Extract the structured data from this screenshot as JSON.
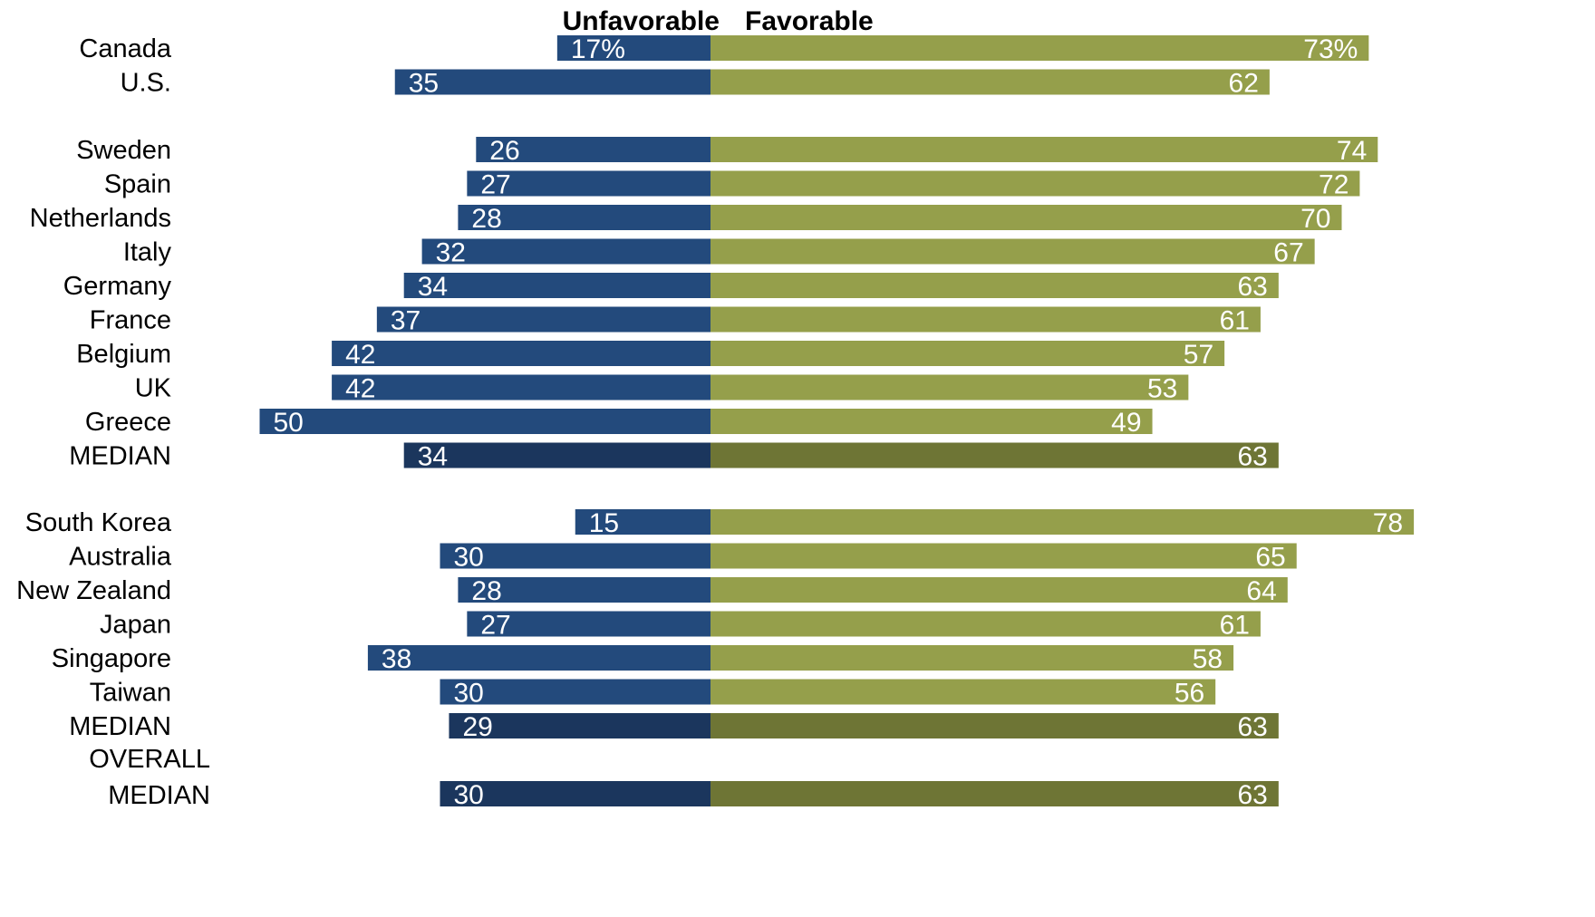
{
  "colors": {
    "unfavorable": "#234a7c",
    "favorable": "#959f4b",
    "median_unfavorable": "#1b365d",
    "median_favorable": "#6e7535",
    "label_on_bar": "#ffffff",
    "text": "#000000"
  },
  "chart_data": {
    "type": "bar",
    "orientation": "horizontal-diverging",
    "series": [
      {
        "name": "Unfavorable",
        "direction": "left"
      },
      {
        "name": "Favorable",
        "direction": "right"
      }
    ],
    "value_format": "percent (first row shows % sign)",
    "groups": [
      {
        "rows": [
          {
            "label": "Canada",
            "unfavorable": 17,
            "favorable": 73,
            "unfav_text": "17%",
            "fav_text": "73%"
          },
          {
            "label": "U.S.",
            "unfavorable": 35,
            "favorable": 62,
            "unfav_text": "35",
            "fav_text": "62"
          }
        ]
      },
      {
        "rows": [
          {
            "label": "Sweden",
            "unfavorable": 26,
            "favorable": 74,
            "unfav_text": "26",
            "fav_text": "74"
          },
          {
            "label": "Spain",
            "unfavorable": 27,
            "favorable": 72,
            "unfav_text": "27",
            "fav_text": "72"
          },
          {
            "label": "Netherlands",
            "unfavorable": 28,
            "favorable": 70,
            "unfav_text": "28",
            "fav_text": "70"
          },
          {
            "label": "Italy",
            "unfavorable": 32,
            "favorable": 67,
            "unfav_text": "32",
            "fav_text": "67"
          },
          {
            "label": "Germany",
            "unfavorable": 34,
            "favorable": 63,
            "unfav_text": "34",
            "fav_text": "63"
          },
          {
            "label": "France",
            "unfavorable": 37,
            "favorable": 61,
            "unfav_text": "37",
            "fav_text": "61"
          },
          {
            "label": "Belgium",
            "unfavorable": 42,
            "favorable": 57,
            "unfav_text": "42",
            "fav_text": "57"
          },
          {
            "label": "UK",
            "unfavorable": 42,
            "favorable": 53,
            "unfav_text": "42",
            "fav_text": "53"
          },
          {
            "label": "Greece",
            "unfavorable": 50,
            "favorable": 49,
            "unfav_text": "50",
            "fav_text": "49"
          },
          {
            "label": "MEDIAN",
            "unfavorable": 34,
            "favorable": 63,
            "unfav_text": "34",
            "fav_text": "63",
            "is_median": true
          }
        ]
      },
      {
        "rows": [
          {
            "label": "South Korea",
            "unfavorable": 15,
            "favorable": 78,
            "unfav_text": "15",
            "fav_text": "78"
          },
          {
            "label": "Australia",
            "unfavorable": 30,
            "favorable": 65,
            "unfav_text": "30",
            "fav_text": "65"
          },
          {
            "label": "New Zealand",
            "unfavorable": 28,
            "favorable": 64,
            "unfav_text": "28",
            "fav_text": "64"
          },
          {
            "label": "Japan",
            "unfavorable": 27,
            "favorable": 61,
            "unfav_text": "27",
            "fav_text": "61"
          },
          {
            "label": "Singapore",
            "unfavorable": 38,
            "favorable": 58,
            "unfav_text": "38",
            "fav_text": "58"
          },
          {
            "label": "Taiwan",
            "unfavorable": 30,
            "favorable": 56,
            "unfav_text": "30",
            "fav_text": "56"
          },
          {
            "label": "MEDIAN",
            "unfavorable": 29,
            "favorable": 63,
            "unfav_text": "29",
            "fav_text": "63",
            "is_median": true
          }
        ]
      },
      {
        "rows": [
          {
            "label": "OVERALL MEDIAN",
            "label_lines": [
              "OVERALL",
              "MEDIAN"
            ],
            "unfavorable": 30,
            "favorable": 63,
            "unfav_text": "30",
            "fav_text": "63",
            "is_median": true
          }
        ]
      }
    ],
    "grid": false,
    "legend": "top-center",
    "title": "",
    "xlabel": "",
    "ylabel": ""
  }
}
